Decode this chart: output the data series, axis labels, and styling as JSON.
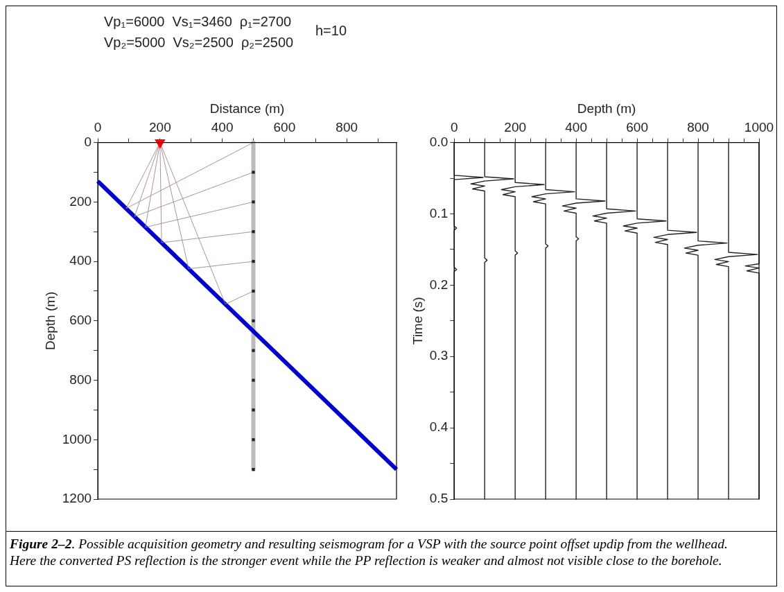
{
  "chart_data": [
    {
      "type": "line",
      "xlabel": "Distance (m)",
      "ylabel": "Depth (m)",
      "xlim": [
        0,
        960
      ],
      "xticks": [
        0,
        {
          "value": 100,
          "label": null
        },
        200,
        {
          "value": 300,
          "label": null
        },
        400,
        {
          "value": 500,
          "label": null
        },
        600,
        {
          "value": 700,
          "label": null
        },
        800,
        {
          "value": 900,
          "label": null
        }
      ],
      "ylim": [
        1200,
        0
      ],
      "yticks": [
        0,
        {
          "value": 100,
          "label": null
        },
        200,
        {
          "value": 300,
          "label": null
        },
        400,
        {
          "value": 500,
          "label": null
        },
        600,
        {
          "value": 700,
          "label": null
        },
        800,
        {
          "value": 900,
          "label": null
        },
        1000,
        {
          "value": 1100,
          "label": null
        },
        1200
      ],
      "annotations": [
        "Vp₁=6000  Vs₁=3460  ρ₁=2700",
        "Vp₂=5000  Vs₂=2500  ρ₂=2500",
        "h=10",
        "Figure 2–2",
        ". Possible acquisition geometry and resulting seismogram for a VSP with the source point offset updip from the wellhead. Here the converted PS reflection is the stronger event while the PP reflection is weaker and almost not visible close to the borehole."
      ],
      "series": [
        {
          "type": "line",
          "color": "#0000cc",
          "x": [
            0,
            960
          ],
          "values": [
            130,
            1100
          ]
        },
        {
          "type": "line",
          "color": "#bbbbbb",
          "x": [
            500,
            500
          ],
          "values": [
            0,
            1100
          ]
        },
        {
          "type": "line",
          "color": "#a08888",
          "x": [
            200,
            91,
            500
          ],
          "values": [
            0,
            222,
            0
          ]
        },
        {
          "type": "line",
          "color": "#a08888",
          "x": [
            200,
            118,
            500
          ],
          "values": [
            0,
            249,
            100
          ]
        },
        {
          "type": "line",
          "color": "#a08888",
          "x": [
            200,
            153,
            500
          ],
          "values": [
            0,
            285,
            200
          ]
        },
        {
          "type": "line",
          "color": "#a08888",
          "x": [
            200,
            205,
            500
          ],
          "values": [
            0,
            337,
            300
          ]
        },
        {
          "type": "line",
          "color": "#a08888",
          "x": [
            200,
            292,
            500
          ],
          "values": [
            0,
            425,
            400
          ]
        },
        {
          "type": "line",
          "color": "#a08888",
          "x": [
            200,
            410,
            500
          ],
          "values": [
            0,
            544,
            500
          ]
        },
        {
          "type": "scatter",
          "marker": "square",
          "color": "#222222",
          "x": [
            500,
            500,
            500,
            500,
            500,
            500,
            500,
            500,
            500,
            500,
            500
          ],
          "values": [
            100,
            200,
            300,
            400,
            500,
            600,
            700,
            800,
            900,
            1000,
            1100
          ]
        },
        {
          "type": "scatter",
          "marker": "triangle",
          "color": "#ff0000",
          "x": [
            200
          ],
          "values": [
            0
          ]
        }
      ]
    },
    {
      "type": "line",
      "xlabel": "Depth (m)",
      "ylabel": "Time (s)",
      "xlim": [
        0,
        1000
      ],
      "xticks": [
        0,
        {
          "value": 50,
          "label": null
        },
        {
          "value": 100,
          "label": null
        },
        {
          "value": 150,
          "label": null
        },
        200,
        {
          "value": 250,
          "label": null
        },
        {
          "value": 300,
          "label": null
        },
        {
          "value": 350,
          "label": null
        },
        400,
        {
          "value": 450,
          "label": null
        },
        {
          "value": 500,
          "label": null
        },
        {
          "value": 550,
          "label": null
        },
        600,
        {
          "value": 650,
          "label": null
        },
        {
          "value": 700,
          "label": null
        },
        {
          "value": 750,
          "label": null
        },
        800,
        {
          "value": 850,
          "label": null
        },
        {
          "value": 900,
          "label": null
        },
        {
          "value": 950,
          "label": null
        },
        1000
      ],
      "ylim": [
        0.5,
        0
      ],
      "yticks": [
        {
          "value": 0,
          "label": "0.0"
        },
        {
          "value": 0.05,
          "label": null
        },
        0.1,
        {
          "value": 0.15,
          "label": null
        },
        0.2,
        {
          "value": 0.25,
          "label": null
        },
        0.3,
        {
          "value": 0.35,
          "label": null
        },
        0.4,
        {
          "value": 0.45,
          "label": null
        },
        0.5
      ],
      "series": [
        {
          "type": "line",
          "color": "#222222",
          "x": [
            0,
            0,
            95,
            0,
            0,
            8,
            0,
            0,
            8,
            0,
            0
          ],
          "values": [
            0,
            0.046,
            0.049,
            0.052,
            0.117,
            0.12,
            0.123,
            0.175,
            0.178,
            0.181,
            0.5
          ]
        },
        {
          "type": "line",
          "color": "#222222",
          "x": [
            100,
            100,
            195,
            100,
            55,
            100,
            60,
            100,
            100,
            108,
            100,
            100
          ],
          "values": [
            0,
            0.048,
            0.051,
            0.054,
            0.058,
            0.061,
            0.065,
            0.068,
            0.162,
            0.165,
            0.168,
            0.5
          ]
        },
        {
          "type": "line",
          "color": "#222222",
          "x": [
            200,
            200,
            295,
            200,
            155,
            200,
            160,
            200,
            200,
            208,
            200,
            200
          ],
          "values": [
            0,
            0.056,
            0.059,
            0.062,
            0.066,
            0.069,
            0.073,
            0.076,
            0.152,
            0.155,
            0.158,
            0.5
          ]
        },
        {
          "type": "line",
          "color": "#222222",
          "x": [
            300,
            300,
            395,
            300,
            255,
            300,
            260,
            300,
            300,
            308,
            300,
            300
          ],
          "values": [
            0,
            0.066,
            0.069,
            0.072,
            0.076,
            0.079,
            0.083,
            0.086,
            0.142,
            0.145,
            0.148,
            0.5
          ]
        },
        {
          "type": "line",
          "color": "#222222",
          "x": [
            400,
            400,
            495,
            400,
            355,
            400,
            360,
            400,
            400,
            408,
            400,
            400
          ],
          "values": [
            0,
            0.079,
            0.082,
            0.085,
            0.089,
            0.092,
            0.096,
            0.099,
            0.132,
            0.135,
            0.138,
            0.5
          ]
        },
        {
          "type": "line",
          "color": "#222222",
          "x": [
            500,
            500,
            595,
            500,
            455,
            500,
            460,
            500,
            500
          ],
          "values": [
            0,
            0.093,
            0.096,
            0.099,
            0.103,
            0.106,
            0.11,
            0.113,
            0.5
          ]
        },
        {
          "type": "line",
          "color": "#222222",
          "x": [
            600,
            600,
            695,
            600,
            555,
            600,
            560,
            600,
            600
          ],
          "values": [
            0,
            0.107,
            0.11,
            0.113,
            0.117,
            0.12,
            0.124,
            0.127,
            0.5
          ]
        },
        {
          "type": "line",
          "color": "#222222",
          "x": [
            700,
            700,
            795,
            700,
            655,
            700,
            660,
            700,
            700
          ],
          "values": [
            0,
            0.123,
            0.126,
            0.129,
            0.133,
            0.136,
            0.14,
            0.143,
            0.5
          ]
        },
        {
          "type": "line",
          "color": "#222222",
          "x": [
            800,
            800,
            895,
            800,
            755,
            800,
            760,
            800,
            800
          ],
          "values": [
            0,
            0.138,
            0.141,
            0.144,
            0.148,
            0.151,
            0.155,
            0.158,
            0.5
          ]
        },
        {
          "type": "line",
          "color": "#222222",
          "x": [
            900,
            900,
            995,
            900,
            855,
            900,
            860,
            900,
            900
          ],
          "values": [
            0,
            0.154,
            0.157,
            0.16,
            0.164,
            0.167,
            0.171,
            0.174,
            0.5
          ]
        },
        {
          "type": "line",
          "color": "#222222",
          "x": [
            1000,
            1000,
            955,
            1000,
            960,
            1000,
            1000
          ],
          "values": [
            0,
            0.17,
            0.173,
            0.176,
            0.18,
            0.183,
            0.5
          ]
        }
      ]
    }
  ]
}
